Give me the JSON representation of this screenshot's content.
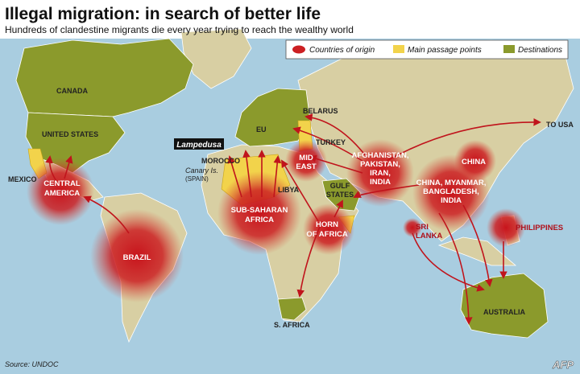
{
  "header": {
    "title": "Illegal migration: in search of better life",
    "subtitle": "Hundreds of clandestine migrants die every year trying to reach the wealthy world"
  },
  "legend": [
    "Countries of origin",
    "Main passage points",
    "Destinations"
  ],
  "places": {
    "canada": "CANADA",
    "united_states": "UNITED STATES",
    "mexico": "MEXICO",
    "central_america": [
      "CENTRAL",
      "AMERICA"
    ],
    "brazil": "BRAZIL",
    "belarus": "BELARUS",
    "eu": "EU",
    "lampedusa": "Lampedusa",
    "morocco": "MOROCCO",
    "canary_islands": "Canary Is.",
    "spain": "(SPAIN)",
    "turkey": "TURKEY",
    "mid_east": [
      "MID",
      "EAST"
    ],
    "libya": "LIBYA",
    "gulf_states": [
      "GULF",
      "STATES"
    ],
    "sub_saharan_africa": [
      "SUB-SAHARAN",
      "AFRICA"
    ],
    "horn_of_africa": [
      "HORN",
      "OF AFRICA"
    ],
    "afghanistan_group": [
      "AFGHANISTAN,",
      "PAKISTAN,",
      "IRAN,",
      "INDIA"
    ],
    "china": "CHINA",
    "to_usa": "TO USA",
    "china_group": [
      "CHINA, MYANMAR,",
      "BANGLADESH,",
      "INDIA"
    ],
    "sri_lanka": [
      "SRI",
      "LANKA"
    ],
    "philippines": "PHILIPPINES",
    "australia": "AUSTRALIA",
    "south_africa": "S. AFRICA"
  },
  "footer": {
    "source": "Source: UNDOC",
    "credit": "AFP"
  }
}
